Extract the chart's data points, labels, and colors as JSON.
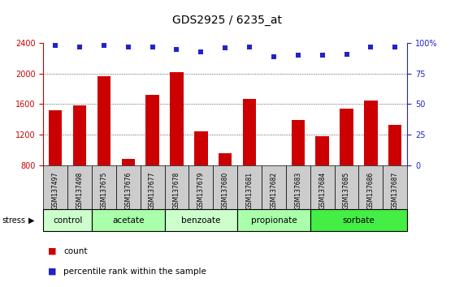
{
  "title": "GDS2925 / 6235_at",
  "samples": [
    "GSM137497",
    "GSM137498",
    "GSM137675",
    "GSM137676",
    "GSM137677",
    "GSM137678",
    "GSM137679",
    "GSM137680",
    "GSM137681",
    "GSM137682",
    "GSM137683",
    "GSM137684",
    "GSM137685",
    "GSM137686",
    "GSM137687"
  ],
  "counts": [
    1520,
    1580,
    1960,
    880,
    1720,
    2020,
    1240,
    950,
    1670,
    790,
    1390,
    1180,
    1540,
    1650,
    1330
  ],
  "percentiles": [
    98,
    97,
    98,
    97,
    97,
    95,
    93,
    96,
    97,
    89,
    90,
    90,
    91,
    97,
    97
  ],
  "bar_color": "#cc0000",
  "dot_color": "#2222cc",
  "ylim_left": [
    800,
    2400
  ],
  "ylim_right": [
    0,
    100
  ],
  "yticks_left": [
    800,
    1200,
    1600,
    2000,
    2400
  ],
  "yticks_right": [
    0,
    25,
    50,
    75,
    100
  ],
  "groups": [
    {
      "label": "control",
      "start": 0,
      "end": 1,
      "color": "#ccffcc"
    },
    {
      "label": "acetate",
      "start": 2,
      "end": 4,
      "color": "#aaffaa"
    },
    {
      "label": "benzoate",
      "start": 5,
      "end": 7,
      "color": "#ccffcc"
    },
    {
      "label": "propionate",
      "start": 8,
      "end": 10,
      "color": "#aaffaa"
    },
    {
      "label": "sorbate",
      "start": 11,
      "end": 14,
      "color": "#44ee44"
    }
  ],
  "stress_label": "stress",
  "legend_count_label": "count",
  "legend_pct_label": "percentile rank within the sample",
  "sample_bg": "#cccccc",
  "plot_bg": "#ffffff",
  "dotgrid_color": "#333333"
}
